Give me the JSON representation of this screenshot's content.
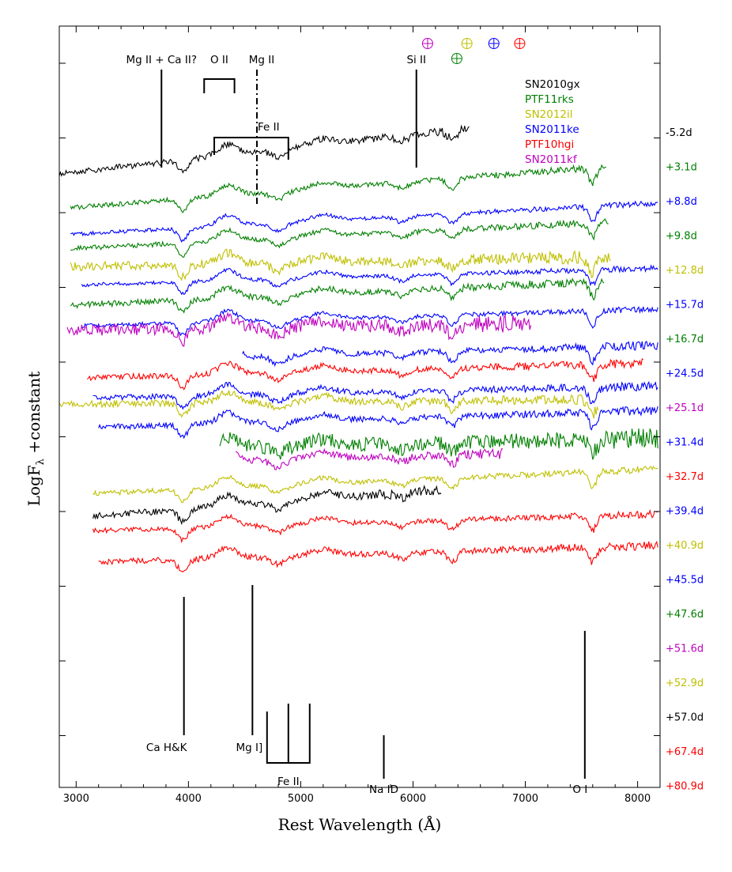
{
  "chart_data": {
    "type": "line",
    "title": "",
    "xlabel": "Rest Wavelength (Å)",
    "ylabel_main": "LogF",
    "ylabel_sub": "λ",
    "ylabel_rest": " +constant",
    "xlim": [
      2850,
      8200
    ],
    "x_ticks": [
      3000,
      4000,
      5000,
      6000,
      7000,
      8000
    ],
    "x_tick_labels": [
      "3000",
      "4000",
      "5000",
      "6000",
      "7000",
      "8000"
    ],
    "y_ticks_log_offset": [
      1,
      2,
      3,
      4,
      5,
      6,
      7,
      8,
      9,
      10
    ],
    "grid": false,
    "legend_position": "top-right",
    "legend": [
      {
        "name": "SN2010gx",
        "color": "#000000"
      },
      {
        "name": "PTF11rks",
        "color": "#007f00"
      },
      {
        "name": "SN2012il",
        "color": "#bfbf00"
      },
      {
        "name": "SN2011ke",
        "color": "#0000ff"
      },
      {
        "name": "PTF10hgi",
        "color": "#ff0000"
      },
      {
        "name": "SN2011kf",
        "color": "#bf00bf"
      }
    ],
    "telluric_markers": [
      {
        "x": 6130,
        "color": "#bf00bf"
      },
      {
        "x": 6390,
        "color": "#007f00"
      },
      {
        "x": 6480,
        "color": "#bfbf00"
      },
      {
        "x": 6720,
        "color": "#0000ff"
      },
      {
        "x": 6950,
        "color": "#ff0000"
      }
    ],
    "line_ids_top": [
      {
        "label": "Mg II + Ca II?",
        "x": 3760
      },
      {
        "label": "O II",
        "x1": 4140,
        "x2": 4410
      },
      {
        "label": "Mg II",
        "x": 4610
      },
      {
        "label": "Fe II",
        "x1": 4230,
        "x2": 4890
      },
      {
        "label": "Si II",
        "x": 6030
      }
    ],
    "line_ids_bottom": [
      {
        "label": "Ca H&K",
        "x": 3960
      },
      {
        "label": "Mg I]",
        "x": 4570
      },
      {
        "label": "Fe II",
        "x1": 4700,
        "x2": 5080
      },
      {
        "label": "Na ID",
        "x": 5740
      },
      {
        "label": "O I",
        "x": 7530
      }
    ],
    "series": [
      {
        "name": "SN2010gx",
        "phase": "-5.2d",
        "color": "#000000",
        "x_range": [
          2850,
          6500
        ],
        "level": 1.0,
        "slope": -0.95,
        "noise": 0.06
      },
      {
        "name": "PTF11rks",
        "phase": "+3.1d",
        "color": "#007f00",
        "x_range": [
          2950,
          7720
        ],
        "level": 1.75,
        "slope": -0.85,
        "noise": 0.05
      },
      {
        "name": "SN2011ke",
        "phase": "+8.8d",
        "color": "#0000ff",
        "x_range": [
          2950,
          8180
        ],
        "level": 2.4,
        "slope": -0.65,
        "noise": 0.04
      },
      {
        "name": "PTF11rks",
        "phase": "+9.8d",
        "color": "#007f00",
        "x_range": [
          2950,
          7740
        ],
        "level": 2.75,
        "slope": -0.55,
        "noise": 0.05
      },
      {
        "name": "SN2012il",
        "phase": "+12.8d",
        "color": "#bfbf00",
        "x_range": [
          2950,
          7760
        ],
        "level": 3.3,
        "slope": -0.2,
        "noise": 0.09
      },
      {
        "name": "SN2011ke",
        "phase": "+15.7d",
        "color": "#0000ff",
        "x_range": [
          3050,
          8180
        ],
        "level": 3.6,
        "slope": -0.35,
        "noise": 0.04
      },
      {
        "name": "PTF11rks",
        "phase": "+16.7d",
        "color": "#007f00",
        "x_range": [
          2950,
          7700
        ],
        "level": 3.95,
        "slope": -0.5,
        "noise": 0.06
      },
      {
        "name": "SN2011ke",
        "phase": "+24.5d",
        "color": "#0000ff",
        "x_range": [
          3050,
          8180
        ],
        "level": 4.45,
        "slope": -0.35,
        "noise": 0.04
      },
      {
        "name": "SN2011kf",
        "phase": "+25.1d",
        "color": "#bf00bf",
        "x_range": [
          2920,
          7050
        ],
        "level": 4.65,
        "slope": -0.15,
        "noise": 0.12
      },
      {
        "name": "SN2011ke",
        "phase": "+31.4d",
        "color": "#0000ff",
        "x_range": [
          4480,
          8180
        ],
        "level": 5.15,
        "slope": -0.25,
        "noise": 0.06
      },
      {
        "name": "PTF10hgi",
        "phase": "+32.7d",
        "color": "#ff0000",
        "x_range": [
          3100,
          8050
        ],
        "level": 5.55,
        "slope": -0.3,
        "noise": 0.06
      },
      {
        "name": "SN2011ke",
        "phase": "+39.4d",
        "color": "#0000ff",
        "x_range": [
          3150,
          8180
        ],
        "level": 6.0,
        "slope": -0.25,
        "noise": 0.06
      },
      {
        "name": "SN2012il",
        "phase": "+40.9d",
        "color": "#bfbf00",
        "x_range": [
          2850,
          7650
        ],
        "level": 6.2,
        "slope": -0.1,
        "noise": 0.07
      },
      {
        "name": "SN2011ke",
        "phase": "+45.5d",
        "color": "#0000ff",
        "x_range": [
          3200,
          8180
        ],
        "level": 6.55,
        "slope": -0.35,
        "noise": 0.06
      },
      {
        "name": "PTF11rks",
        "phase": "+47.6d",
        "color": "#007f00",
        "x_range": [
          4280,
          8180
        ],
        "level": 7.05,
        "slope": -0.2,
        "noise": 0.14
      },
      {
        "name": "SN2011kf",
        "phase": "+51.6d",
        "color": "#bf00bf",
        "x_range": [
          4420,
          6800
        ],
        "level": 7.35,
        "slope": -0.15,
        "noise": 0.07
      },
      {
        "name": "SN2012il",
        "phase": "+52.9d",
        "color": "#bfbf00",
        "x_range": [
          3150,
          8180
        ],
        "level": 7.85,
        "slope": -0.5,
        "noise": 0.05
      },
      {
        "name": "SN2010gx",
        "phase": "+57.0d",
        "color": "#000000",
        "x_range": [
          3150,
          6250
        ],
        "level": 8.3,
        "slope": -0.55,
        "noise": 0.07
      },
      {
        "name": "PTF10hgi",
        "phase": "+67.4d",
        "color": "#ff0000",
        "x_range": [
          3150,
          8180
        ],
        "level": 8.7,
        "slope": -0.35,
        "noise": 0.05
      },
      {
        "name": "PTF10hgi",
        "phase": "+80.9d",
        "color": "#ff0000",
        "x_range": [
          3200,
          8180
        ],
        "level": 9.35,
        "slope": -0.35,
        "noise": 0.06
      }
    ]
  }
}
